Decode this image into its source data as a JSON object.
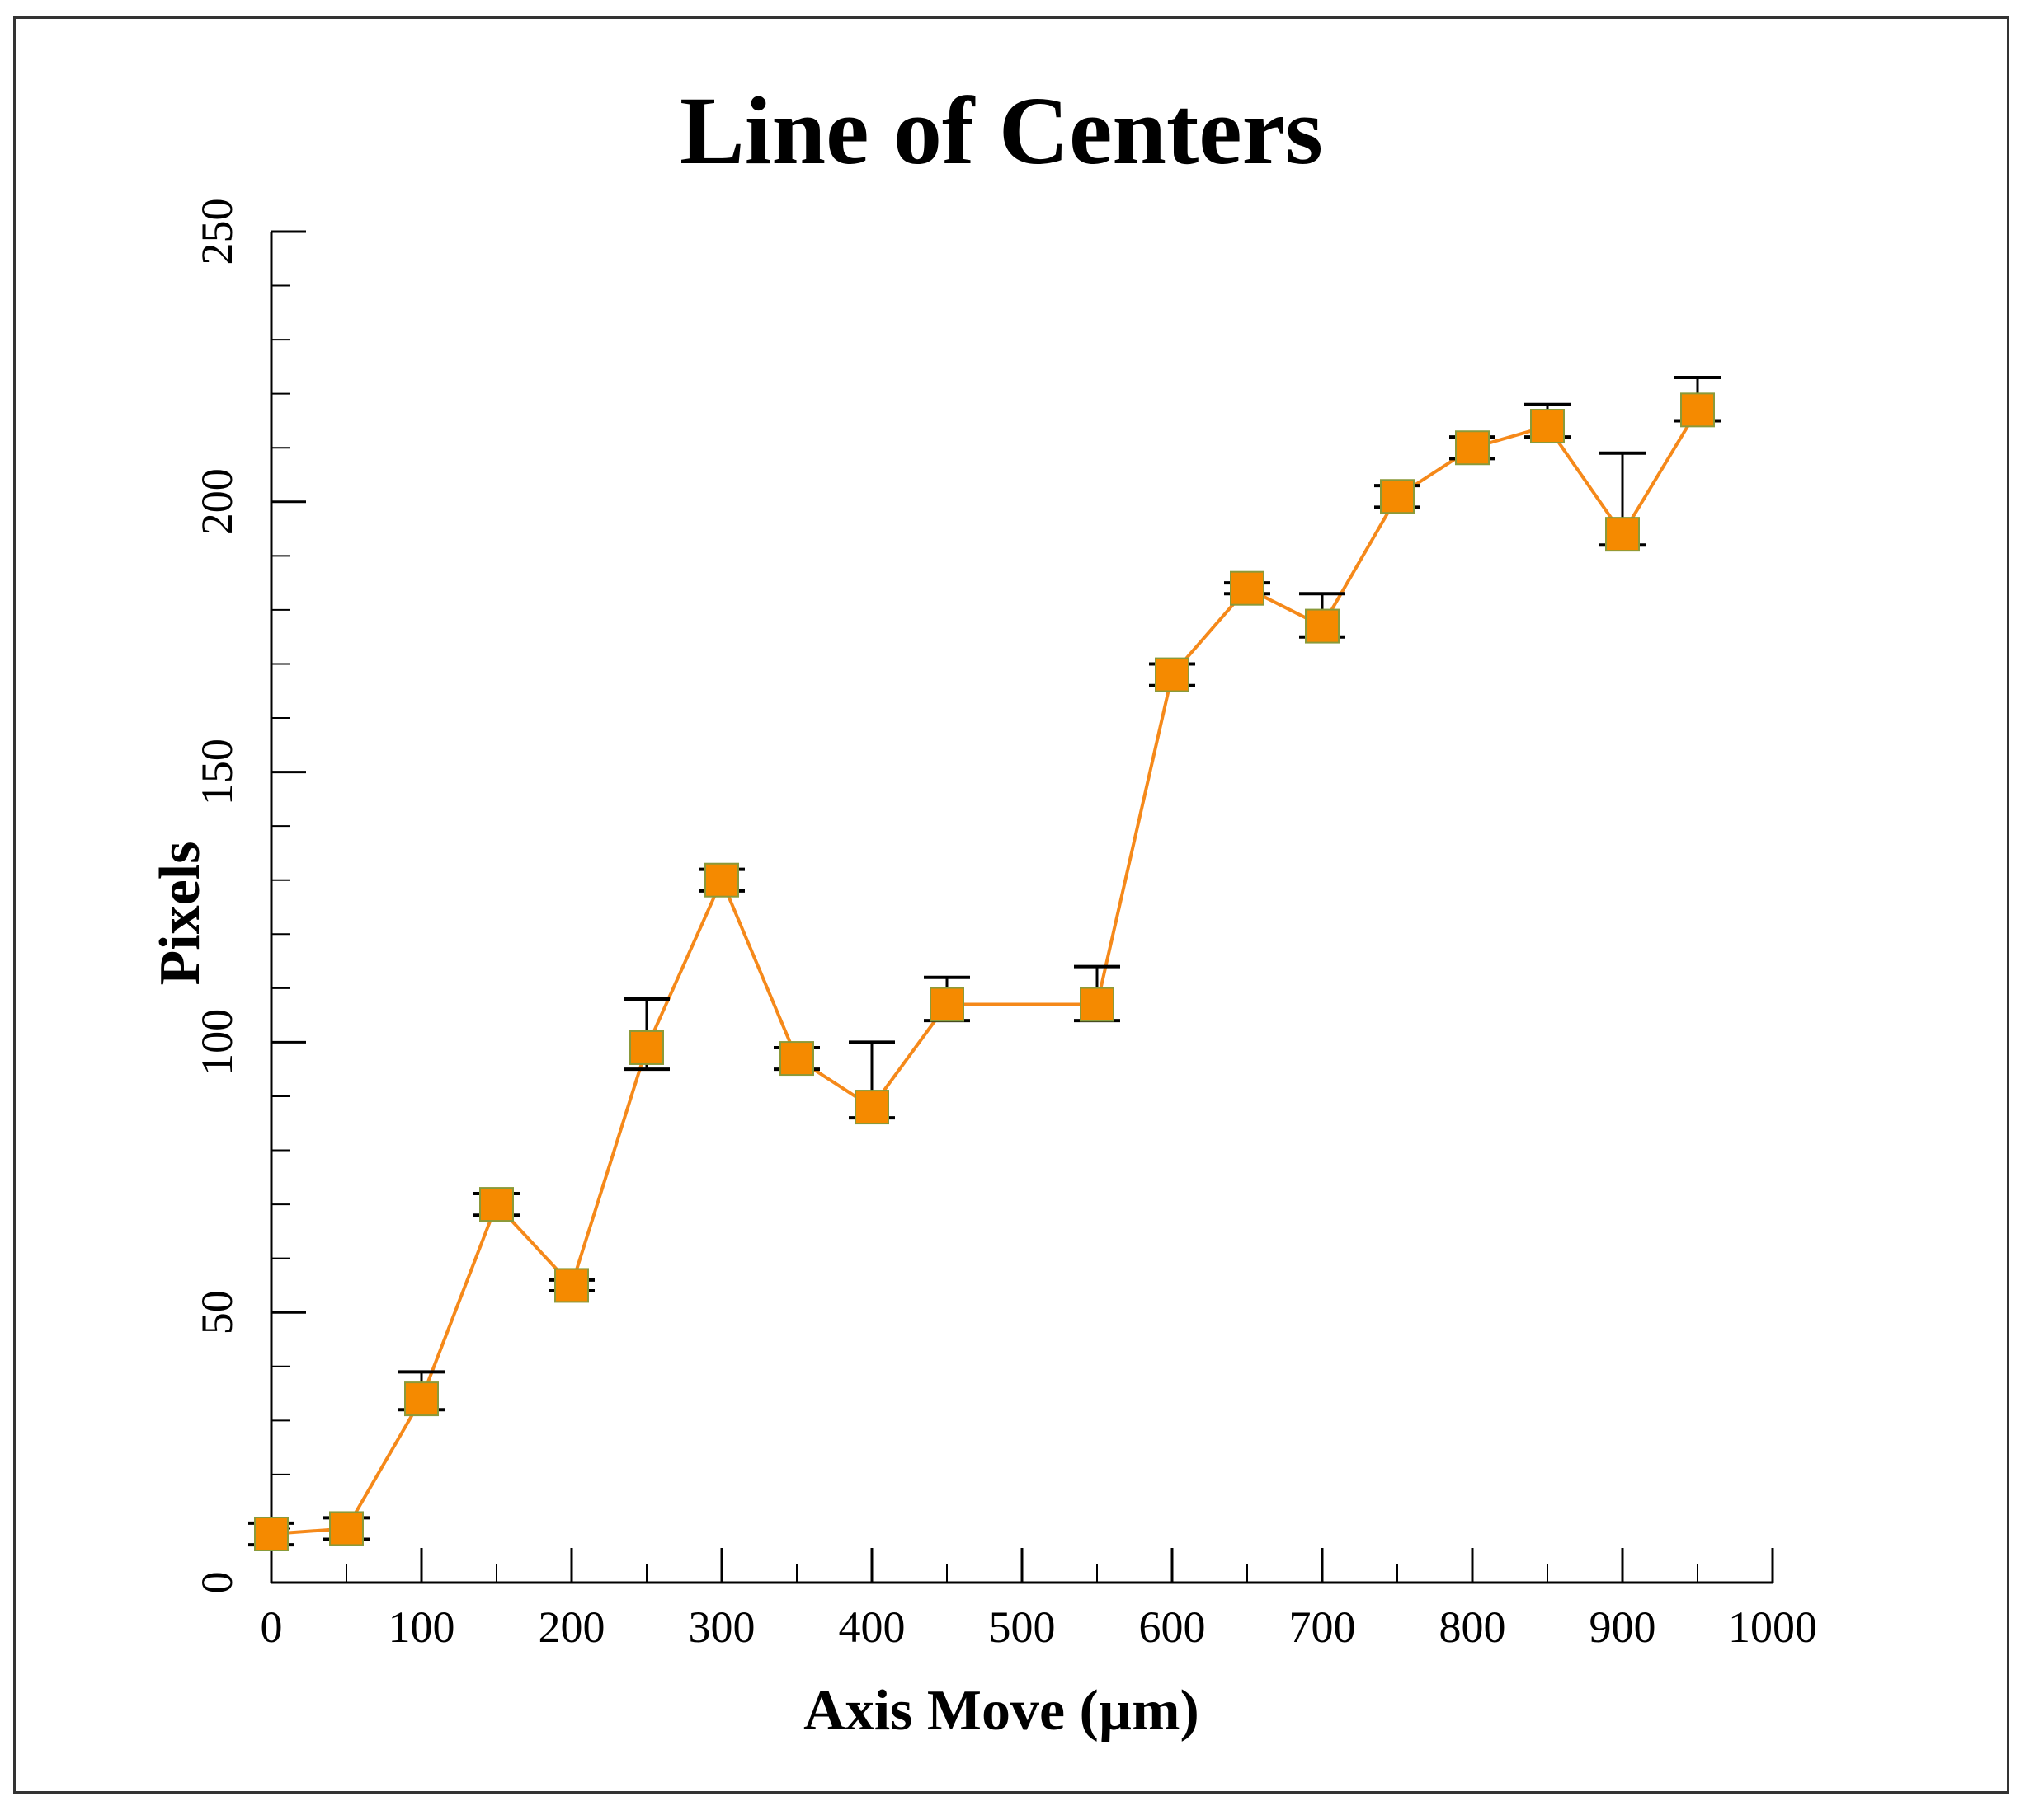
{
  "chart_data": {
    "type": "line",
    "title": "Line of Centers",
    "xlabel": "Axis Move (µm)",
    "ylabel": "Pixels",
    "xlim": [
      0,
      1000
    ],
    "ylim": [
      0,
      250
    ],
    "x_ticks": [
      0,
      100,
      200,
      300,
      400,
      500,
      600,
      700,
      800,
      900,
      1000
    ],
    "y_ticks": [
      0,
      50,
      100,
      150,
      200,
      250
    ],
    "grid": false,
    "series": [
      {
        "name": "Line of Centers",
        "color": "#f5891a",
        "marker": "square",
        "marker_color": "#f58a00",
        "marker_edge": "#8a9a3a",
        "errorbar_color": "#000000",
        "x": [
          0,
          50,
          100,
          150,
          200,
          250,
          300,
          350,
          400,
          450,
          550,
          600,
          650,
          700,
          750,
          800,
          850,
          900,
          950
        ],
        "y": [
          9,
          10,
          34,
          70,
          55,
          99,
          130,
          97,
          88,
          107,
          107,
          168,
          184,
          177,
          201,
          210,
          214,
          194,
          217
        ],
        "err_low": [
          2,
          2,
          2,
          2,
          1,
          4,
          2,
          2,
          2,
          3,
          3,
          2,
          1,
          2,
          2,
          2,
          2,
          2,
          2
        ],
        "err_high": [
          2,
          2,
          5,
          2,
          1,
          9,
          2,
          2,
          12,
          5,
          7,
          2,
          1,
          6,
          2,
          2,
          4,
          15,
          6
        ]
      }
    ]
  }
}
